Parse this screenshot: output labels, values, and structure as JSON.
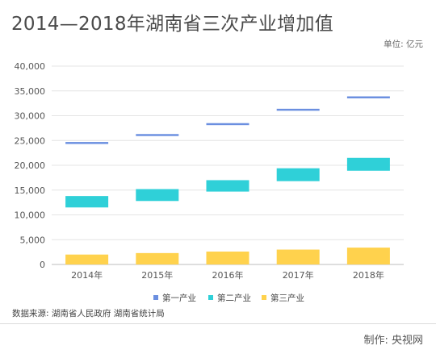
{
  "title": "2014—2018年湖南省三次产业增加值",
  "unit_label": "单位: 亿元",
  "source_label": "数据来源:  湖南省人民政府  湖南省统计局",
  "credit_label": "制作:  央视网",
  "chart_data": {
    "type": "bar",
    "categories": [
      "2014年",
      "2015年",
      "2016年",
      "2017年",
      "2018年"
    ],
    "ylim": [
      0,
      40000
    ],
    "yticks": [
      "0",
      "5,000",
      "10,000",
      "15,000",
      "20,000",
      "25,000",
      "30,000",
      "35,000",
      "40,000"
    ],
    "grid": true,
    "legend_position": "bottom",
    "series": [
      {
        "name": "第一产业",
        "color": "#6b8fe0",
        "values": [
          [
            24300,
            24700
          ],
          [
            25900,
            26300
          ],
          [
            28100,
            28500
          ],
          [
            31000,
            31400
          ],
          [
            33500,
            33900
          ]
        ]
      },
      {
        "name": "第二产业",
        "color": "#2fd0d8",
        "values": [
          [
            11500,
            13800
          ],
          [
            12800,
            15200
          ],
          [
            14700,
            17000
          ],
          [
            16800,
            19400
          ],
          [
            18900,
            21500
          ]
        ]
      },
      {
        "name": "第三产业",
        "color": "#ffd24d",
        "values": [
          [
            0,
            2000
          ],
          [
            0,
            2300
          ],
          [
            0,
            2600
          ],
          [
            0,
            3000
          ],
          [
            0,
            3400
          ]
        ]
      }
    ]
  }
}
